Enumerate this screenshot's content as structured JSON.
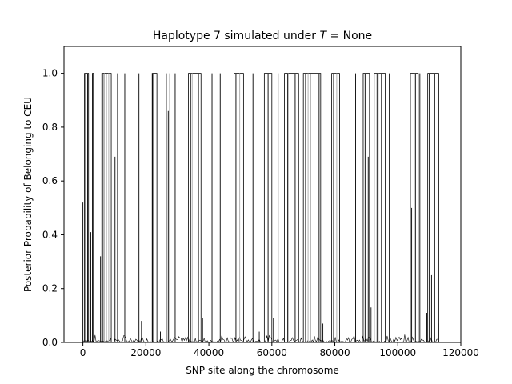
{
  "chart_data": {
    "type": "line",
    "title": "Haplotype 7 simulated under ",
    "title_var": "T",
    "title_suffix": " =  None",
    "xlabel": "SNP site along the chromosome",
    "ylabel": "Posterior Probability of Belonging to CEU",
    "xlim": [
      -6000,
      120000
    ],
    "ylim": [
      0.0,
      1.1
    ],
    "x_ticks": [
      0,
      20000,
      40000,
      60000,
      80000,
      100000,
      120000
    ],
    "x_tick_labels": [
      "0",
      "20000",
      "40000",
      "60000",
      "80000",
      "100000",
      "120000"
    ],
    "y_ticks": [
      0.0,
      0.2,
      0.4,
      0.6,
      0.8,
      1.0
    ],
    "y_tick_labels": [
      "0.0",
      "0.2",
      "0.4",
      "0.6",
      "0.8",
      "1.0"
    ],
    "grid": false,
    "legend": "none",
    "series": [
      {
        "color": "#000000",
        "spikes": [
          [
            0,
            0.52
          ],
          [
            600,
            1.0
          ],
          [
            1500,
            1.0
          ],
          [
            2500,
            0.41
          ],
          [
            3200,
            1.0
          ],
          [
            4800,
            1.0
          ],
          [
            5600,
            0.32
          ],
          [
            6400,
            1.0
          ],
          [
            7400,
            1.0
          ],
          [
            8600,
            1.0
          ],
          [
            10200,
            0.69
          ],
          [
            11000,
            1.0
          ],
          [
            13300,
            1.0
          ],
          [
            17800,
            1.0
          ],
          [
            18600,
            0.08
          ],
          [
            22200,
            1.0
          ],
          [
            24600,
            0.04
          ],
          [
            26500,
            1.0
          ],
          [
            27100,
            0.86
          ],
          [
            29300,
            1.0
          ],
          [
            34200,
            1.0
          ],
          [
            36700,
            1.0
          ],
          [
            38000,
            0.09
          ],
          [
            41000,
            1.0
          ],
          [
            43600,
            1.0
          ],
          [
            48600,
            1.0
          ],
          [
            50000,
            0.0
          ],
          [
            54000,
            1.0
          ],
          [
            56000,
            0.04
          ],
          [
            58800,
            1.0
          ],
          [
            60500,
            0.09
          ],
          [
            62000,
            1.0
          ],
          [
            65000,
            1.0
          ],
          [
            67400,
            1.0
          ],
          [
            70700,
            1.0
          ],
          [
            72200,
            1.0
          ],
          [
            75000,
            1.0
          ],
          [
            76200,
            0.07
          ],
          [
            79600,
            1.0
          ],
          [
            86600,
            1.0
          ],
          [
            89600,
            1.0
          ],
          [
            90600,
            0.69
          ],
          [
            91500,
            0.13
          ],
          [
            93400,
            1.0
          ],
          [
            94800,
            1.0
          ],
          [
            97300,
            1.0
          ],
          [
            104400,
            0.5
          ],
          [
            105600,
            1.0
          ],
          [
            107000,
            1.0
          ],
          [
            109200,
            0.11
          ],
          [
            110000,
            1.0
          ],
          [
            110700,
            0.25
          ],
          [
            111700,
            1.0
          ],
          [
            112900,
            0.07
          ]
        ],
        "blocks": [
          [
            500,
            1800
          ],
          [
            3000,
            3500
          ],
          [
            6000,
            9000
          ],
          [
            22000,
            23500
          ],
          [
            33500,
            37500
          ],
          [
            48000,
            51000
          ],
          [
            57600,
            60000
          ],
          [
            64000,
            68500
          ],
          [
            70000,
            75500
          ],
          [
            79000,
            81500
          ],
          [
            89000,
            91000
          ],
          [
            92500,
            96000
          ],
          [
            104000,
            106500
          ],
          [
            109500,
            113000
          ]
        ]
      },
      {
        "color": "#aaaaaa",
        "spikes": [
          [
            1000,
            1.0
          ],
          [
            6800,
            1.0
          ],
          [
            8200,
            1.0
          ],
          [
            27500,
            1.0
          ],
          [
            34700,
            1.0
          ],
          [
            49800,
            1.0
          ],
          [
            65200,
            1.0
          ],
          [
            71500,
            1.0
          ],
          [
            80600,
            1.0
          ],
          [
            93800,
            1.0
          ],
          [
            105200,
            1.0
          ],
          [
            111500,
            1.0
          ]
        ],
        "blocks": []
      }
    ]
  }
}
